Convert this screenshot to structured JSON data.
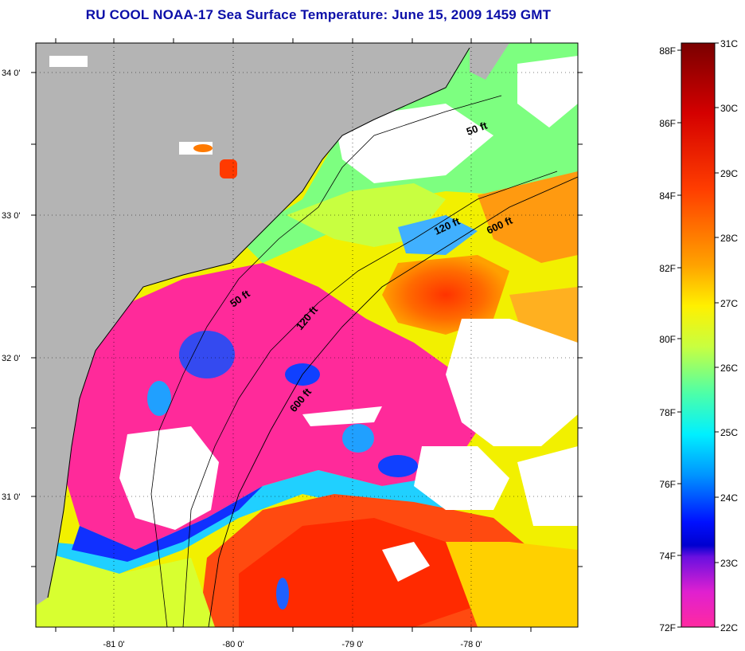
{
  "title": "RU COOL  NOAA-17  Sea Surface Temperature:  June 15, 2009 1459 GMT",
  "colors": {
    "land": "#b4b4b4",
    "cloud": "#ffffff",
    "title": "#0b0ea8",
    "coast": "#000000"
  },
  "map": {
    "lat_ticks": [
      "34 0'",
      "33 0'",
      "32 0'",
      "31 0'"
    ],
    "lon_ticks": [
      "-81 0'",
      "-80 0'",
      "-79 0'",
      "-78 0'"
    ],
    "contours": [
      "50 ft",
      "120 ft",
      "600 ft"
    ],
    "contour_labels": {
      "north_50": "50 ft",
      "north_120": "120 ft",
      "north_600": "600 ft",
      "mid_50": "50 ft",
      "mid_120": "120 ft",
      "south_600": "600 ft"
    }
  },
  "colorbar": {
    "fahrenheit_labels": [
      "88F",
      "86F",
      "84F",
      "82F",
      "80F",
      "78F",
      "76F",
      "74F",
      "72F"
    ],
    "celsius_labels": [
      "31C",
      "30C",
      "29C",
      "28C",
      "27C",
      "26C",
      "25C",
      "24C",
      "23C",
      "22C"
    ],
    "gradient_stops": [
      "#7a0000",
      "#c80000",
      "#ff2a00",
      "#ff7a00",
      "#ffd400",
      "#f0ff00",
      "#b8ff4a",
      "#4dffb0",
      "#00e8ff",
      "#0090ff",
      "#0020ff",
      "#0000e0",
      "#8800e8",
      "#ff20c0",
      "#ff2aa0"
    ]
  }
}
